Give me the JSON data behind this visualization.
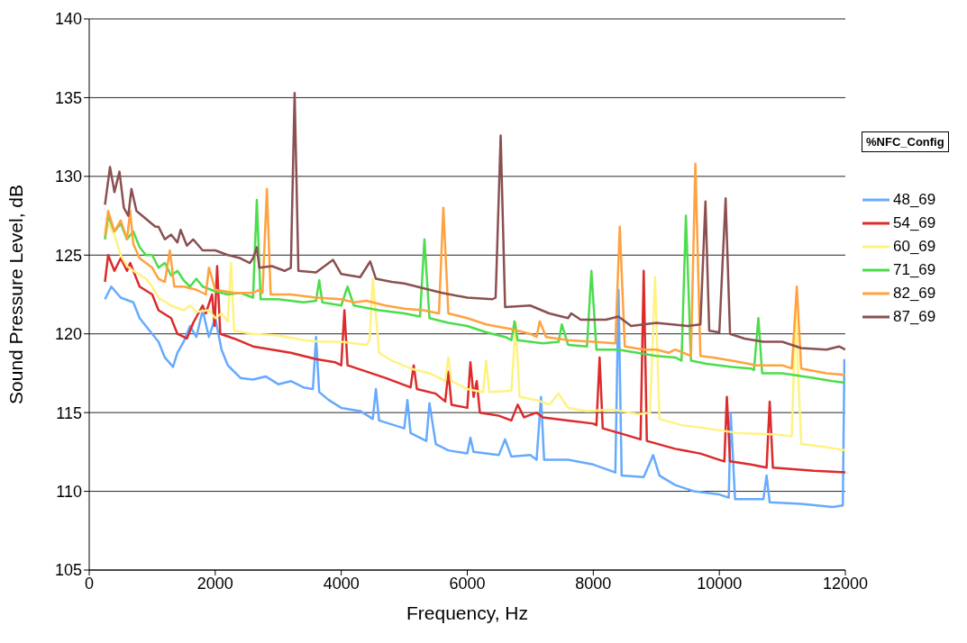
{
  "chart_data": {
    "type": "line",
    "xlabel": "Frequency, Hz",
    "ylabel": "Sound Pressure Level, dB",
    "legend_title": "%NFC_Config",
    "legend": "right",
    "grid": "y",
    "marker": "none",
    "line_style": "solid",
    "xlim": [
      0,
      12000
    ],
    "xticks": [
      0,
      2000,
      4000,
      6000,
      8000,
      10000,
      12000
    ],
    "ylim": [
      105,
      140
    ],
    "yticks": [
      105,
      110,
      115,
      120,
      125,
      130,
      135,
      140
    ],
    "series": [
      {
        "name": "48_69",
        "color": "#66aaff",
        "x": [
          250,
          350,
          500,
          700,
          800,
          1000,
          1100,
          1200,
          1330,
          1400,
          1500,
          1600,
          1700,
          1800,
          1900,
          2000,
          2100,
          2200,
          2400,
          2600,
          2800,
          3000,
          3200,
          3400,
          3550,
          3600,
          3650,
          3800,
          4000,
          4300,
          4500,
          4550,
          4600,
          5000,
          5050,
          5100,
          5350,
          5400,
          5500,
          5700,
          6000,
          6050,
          6100,
          6300,
          6500,
          6600,
          6700,
          7000,
          7100,
          7170,
          7220,
          7600,
          8000,
          8350,
          8400,
          8450,
          8800,
          8950,
          9050,
          9300,
          9600,
          10000,
          10150,
          10180,
          10250,
          10700,
          10750,
          10800,
          11300,
          11800,
          11960,
          11985
        ],
        "values": [
          122.2,
          123,
          122.3,
          122,
          121,
          120,
          119.5,
          118.5,
          117.9,
          118.8,
          119.5,
          120.5,
          119.8,
          121.5,
          119.8,
          121,
          119,
          118,
          117.2,
          117.1,
          117.3,
          116.8,
          117,
          116.6,
          116.5,
          119.8,
          116.3,
          115.8,
          115.3,
          115.1,
          114.6,
          116.5,
          114.5,
          114,
          115.8,
          113.7,
          113.2,
          115.6,
          113,
          112.6,
          112.4,
          113.4,
          112.5,
          112.4,
          112.3,
          113.3,
          112.2,
          112.3,
          112,
          116,
          112,
          112,
          111.7,
          111.2,
          122.8,
          111,
          110.9,
          112.3,
          111,
          110.4,
          110,
          109.8,
          109.6,
          115,
          109.5,
          109.5,
          111,
          109.3,
          109.2,
          109,
          109.1,
          118.4
        ]
      },
      {
        "name": "54_69",
        "color": "#dd2a2a",
        "x": [
          250,
          300,
          400,
          500,
          600,
          650,
          800,
          1000,
          1100,
          1300,
          1400,
          1550,
          1650,
          1800,
          1850,
          1950,
          1990,
          2030,
          2080,
          2300,
          2600,
          2900,
          3200,
          3400,
          3600,
          3900,
          4000,
          4050,
          4100,
          4400,
          4700,
          5100,
          5150,
          5200,
          5500,
          5650,
          5700,
          5750,
          6000,
          6050,
          6100,
          6150,
          6200,
          6500,
          6700,
          6800,
          6900,
          7100,
          7200,
          7600,
          8000,
          8050,
          8100,
          8150,
          8500,
          8750,
          8800,
          8850,
          9300,
          9700,
          10000,
          10080,
          10120,
          10170,
          10500,
          10750,
          10800,
          10850,
          11500,
          12000
        ],
        "values": [
          123.3,
          125,
          124,
          124.8,
          124,
          124.5,
          123,
          122.5,
          121.5,
          121,
          120,
          119.7,
          120.7,
          121.8,
          121.3,
          122.5,
          120.5,
          124.3,
          120,
          119.7,
          119.2,
          119,
          118.8,
          118.6,
          118.4,
          118.2,
          118,
          121.5,
          118,
          117.6,
          117.2,
          116.6,
          118,
          116.5,
          116.2,
          115.7,
          117.6,
          115.5,
          115.3,
          118.2,
          116,
          117,
          115,
          114.8,
          114.5,
          115.5,
          114.7,
          115,
          114.7,
          114.5,
          114.3,
          114.2,
          118.5,
          114,
          113.6,
          113.3,
          124,
          113.2,
          112.7,
          112.4,
          112,
          111.9,
          116,
          111.9,
          111.7,
          111.5,
          115.7,
          111.5,
          111.3,
          111.2
        ]
      },
      {
        "name": "60_69",
        "color": "#fff280",
        "x": [
          250,
          300,
          400,
          500,
          600,
          700,
          900,
          1000,
          1100,
          1300,
          1500,
          1600,
          1700,
          1900,
          2000,
          2100,
          2200,
          2250,
          2300,
          2600,
          3000,
          3400,
          3700,
          4000,
          4400,
          4450,
          4500,
          4600,
          4800,
          5100,
          5400,
          5650,
          5700,
          5750,
          6000,
          6250,
          6300,
          6350,
          6700,
          6770,
          6830,
          7100,
          7300,
          7450,
          7600,
          7900,
          8300,
          8700,
          8900,
          8980,
          9050,
          9400,
          9800,
          10300,
          10900,
          11150,
          11210,
          11300,
          11700,
          12000
        ],
        "values": [
          126,
          127,
          126.3,
          125,
          124.3,
          124,
          123.5,
          123,
          122.3,
          121.8,
          121.5,
          121.8,
          121.4,
          121.5,
          121,
          121.3,
          120.8,
          124.5,
          120.2,
          120,
          119.9,
          119.6,
          119.5,
          119.5,
          119.3,
          119.6,
          123.5,
          118.8,
          118.3,
          117.8,
          117.5,
          117,
          118.5,
          117,
          116.5,
          116.3,
          118.3,
          116.3,
          116.4,
          120.7,
          116,
          115.8,
          115.5,
          116.2,
          115.3,
          115.1,
          115.2,
          114.9,
          115,
          123.6,
          114.6,
          114.2,
          114,
          113.7,
          113.6,
          113.5,
          121.5,
          113,
          112.8,
          112.6
        ]
      },
      {
        "name": "71_69",
        "color": "#4cdd4c",
        "x": [
          250,
          300,
          400,
          500,
          600,
          700,
          800,
          900,
          1000,
          1100,
          1200,
          1300,
          1400,
          1500,
          1600,
          1700,
          1800,
          2000,
          2200,
          2400,
          2600,
          2660,
          2720,
          3000,
          3400,
          3600,
          3650,
          3700,
          4000,
          4100,
          4200,
          4600,
          5000,
          5250,
          5320,
          5400,
          5700,
          6000,
          6300,
          6600,
          6700,
          6750,
          6800,
          7200,
          7450,
          7500,
          7600,
          7900,
          7970,
          8050,
          8400,
          8700,
          9000,
          9300,
          9400,
          9470,
          9550,
          9800,
          10200,
          10500,
          10550,
          10620,
          10680,
          11000,
          11500,
          11800,
          12000
        ],
        "values": [
          126,
          127.5,
          126.5,
          127,
          126,
          126.5,
          125.5,
          125,
          125,
          124.2,
          124.5,
          123.7,
          124,
          123.4,
          123,
          123.5,
          123,
          122.7,
          122.5,
          122.6,
          122.3,
          128.5,
          122.2,
          122.2,
          122,
          122.1,
          123.4,
          122,
          121.8,
          123,
          121.8,
          121.5,
          121.3,
          121.1,
          126,
          121,
          120.7,
          120.5,
          120.1,
          119.8,
          119.6,
          120.8,
          119.6,
          119.4,
          119.5,
          120.6,
          119.3,
          119.2,
          124,
          119,
          119,
          118.8,
          118.6,
          118.5,
          118.3,
          127.5,
          118.3,
          118.1,
          117.9,
          117.8,
          117.7,
          121,
          117.5,
          117.5,
          117.2,
          117,
          116.9
        ]
      },
      {
        "name": "82_69",
        "color": "#ffa23f",
        "x": [
          250,
          300,
          400,
          500,
          600,
          650,
          700,
          800,
          1000,
          1100,
          1200,
          1280,
          1350,
          1500,
          1700,
          1850,
          1900,
          2000,
          2300,
          2600,
          2700,
          2750,
          2820,
          2880,
          3200,
          3600,
          4000,
          4200,
          4400,
          4700,
          5000,
          5300,
          5550,
          5620,
          5700,
          6000,
          6300,
          6700,
          7000,
          7100,
          7150,
          7250,
          7600,
          8000,
          8350,
          8420,
          8500,
          8800,
          9000,
          9200,
          9300,
          9550,
          9620,
          9700,
          9900,
          10200,
          10600,
          11000,
          11150,
          11230,
          11300,
          11700,
          12000
        ],
        "values": [
          126.2,
          127.8,
          126.5,
          127.2,
          126,
          127.8,
          125.7,
          124.8,
          124.2,
          123.5,
          123.3,
          125.3,
          123,
          123,
          122.8,
          122.5,
          124.2,
          122.8,
          122.6,
          122.6,
          122.8,
          122.6,
          129.2,
          122.5,
          122.5,
          122.3,
          122.2,
          122,
          122.1,
          121.8,
          121.6,
          121.5,
          121.3,
          128,
          121.3,
          121,
          120.6,
          120.3,
          120,
          119.8,
          120.8,
          119.8,
          119.6,
          119.5,
          119.4,
          126.8,
          119.2,
          119,
          119,
          118.8,
          119,
          118.6,
          130.8,
          118.6,
          118.5,
          118.3,
          118,
          118,
          117.8,
          123,
          117.8,
          117.5,
          117.4
        ]
      },
      {
        "name": "87_69",
        "color": "#8b5050",
        "x": [
          250,
          330,
          400,
          480,
          550,
          620,
          670,
          750,
          900,
          1050,
          1100,
          1200,
          1300,
          1400,
          1450,
          1550,
          1650,
          1800,
          2000,
          2200,
          2400,
          2550,
          2600,
          2660,
          2700,
          2900,
          3100,
          3200,
          3260,
          3320,
          3600,
          3870,
          4000,
          4300,
          4460,
          4550,
          4800,
          5000,
          5300,
          5600,
          6000,
          6400,
          6450,
          6530,
          6600,
          7000,
          7300,
          7600,
          7650,
          7800,
          8200,
          8400,
          8600,
          8800,
          9000,
          9500,
          9700,
          9780,
          9840,
          10000,
          10100,
          10170,
          10400,
          10700,
          11000,
          11300,
          11700,
          11900,
          12000
        ],
        "values": [
          128.2,
          130.6,
          129,
          130.3,
          128,
          127.5,
          129.2,
          127.8,
          127.3,
          126.8,
          126.8,
          126,
          126.3,
          125.8,
          126.6,
          125.6,
          126,
          125.3,
          125.3,
          125,
          124.8,
          124.5,
          124.8,
          125.5,
          124.2,
          124.3,
          124,
          124.2,
          135.3,
          124,
          123.9,
          124.7,
          123.8,
          123.6,
          124.6,
          123.5,
          123.3,
          123.2,
          122.9,
          122.6,
          122.3,
          122.2,
          122.3,
          132.6,
          121.7,
          121.8,
          121.3,
          121,
          121.3,
          120.9,
          120.9,
          121.1,
          120.5,
          120.6,
          120.7,
          120.5,
          120.6,
          128.4,
          120.2,
          120.1,
          128.6,
          120,
          119.7,
          119.5,
          119.5,
          119.1,
          119,
          119.2,
          119
        ]
      }
    ]
  }
}
